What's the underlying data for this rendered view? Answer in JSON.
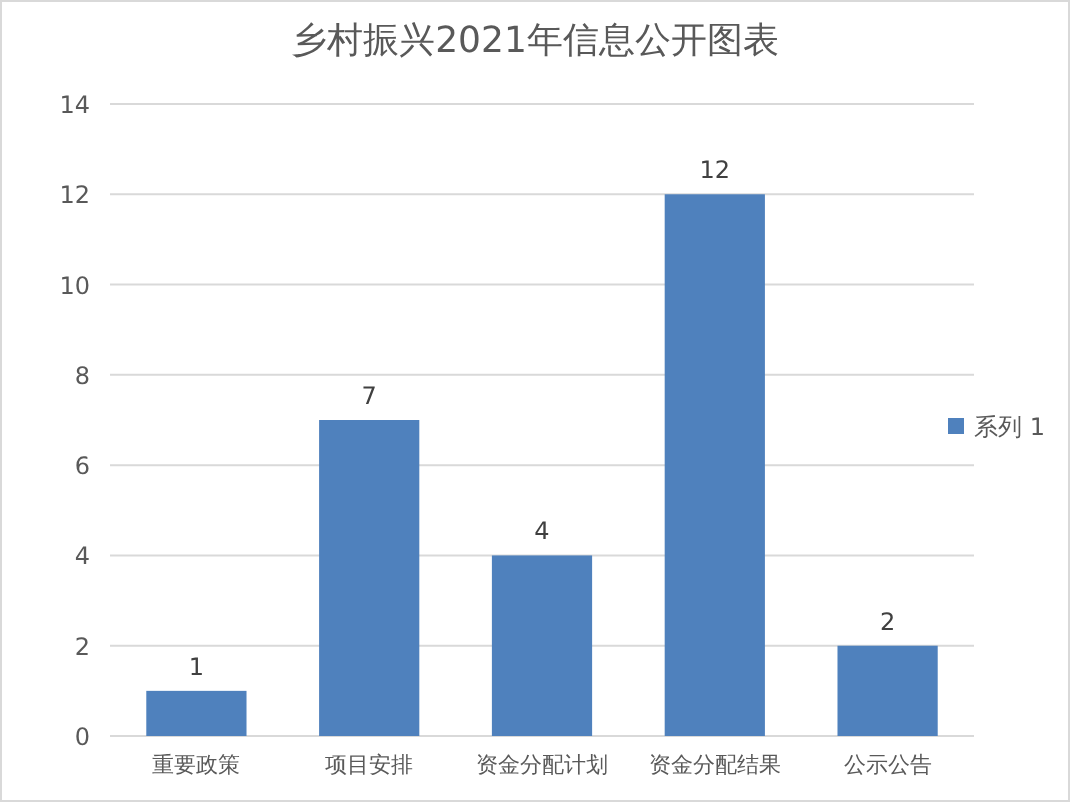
{
  "chart_data": {
    "type": "bar",
    "title": "乡村振兴2021年信息公开图表",
    "categories": [
      "重要政策",
      "项目安排",
      "资金分配计划",
      "资金分配结果",
      "公示公告"
    ],
    "series": [
      {
        "name": "系列 1",
        "color": "#4f81bd",
        "values": [
          1,
          7,
          4,
          12,
          2
        ]
      }
    ],
    "ylim": [
      0,
      14
    ],
    "yticks": [
      0,
      2,
      4,
      6,
      8,
      10,
      12,
      14
    ],
    "grid": "y",
    "legend": "right",
    "data_labels": true
  }
}
